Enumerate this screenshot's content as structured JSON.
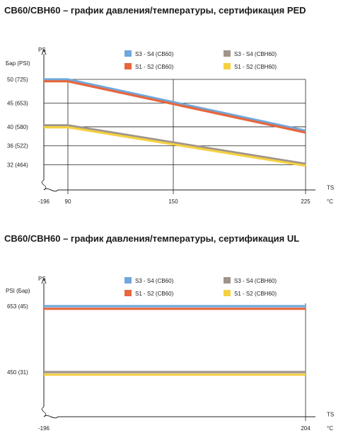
{
  "chart_data": [
    {
      "type": "line",
      "title": "CB60/CBH60 – график давления/температуры, сертификация PED",
      "ylabel": "PS",
      "yunit": "Бар (PSI)",
      "xlabel": "TS",
      "xunit": "°C",
      "yticks": [
        {
          "value": 50,
          "label": "50  (725)"
        },
        {
          "value": 45,
          "label": "45  (653)"
        },
        {
          "value": 40,
          "label": "40  (580)"
        },
        {
          "value": 36,
          "label": "36  (522)"
        },
        {
          "value": 32,
          "label": "32  (464)"
        }
      ],
      "xticks": [
        {
          "value": -196,
          "label": "-196"
        },
        {
          "value": 90,
          "label": "90"
        },
        {
          "value": 150,
          "label": "150"
        },
        {
          "value": 225,
          "label": "225"
        }
      ],
      "legend_placement": "top",
      "series": [
        {
          "name": "S3 - S4   (CB60)",
          "color": "#6fa8dc",
          "x": [
            -196,
            90,
            225
          ],
          "y": [
            50,
            50,
            39.2
          ]
        },
        {
          "name": "S1 - S2   (CB60)",
          "color": "#e8663d",
          "x": [
            -196,
            90,
            225
          ],
          "y": [
            49.6,
            49.6,
            38.8
          ]
        },
        {
          "name": "S3 - S4   (CBH60)",
          "color": "#9e948c",
          "x": [
            -196,
            90,
            225
          ],
          "y": [
            40.3,
            40.3,
            32.2
          ]
        },
        {
          "name": "S1 - S2   (CBH60)",
          "color": "#f5d142",
          "x": [
            -196,
            90,
            225
          ],
          "y": [
            39.9,
            39.9,
            31.8
          ]
        }
      ]
    },
    {
      "type": "line",
      "title": "CB60/CBH60 – график давления/температуры, сертификация UL",
      "ylabel": "PS",
      "yunit": "PSI (Бар)",
      "xlabel": "TS",
      "xunit": "°C",
      "yticks": [
        {
          "value": 653,
          "label": "653  (45)"
        },
        {
          "value": 450,
          "label": "450  (31)"
        }
      ],
      "xticks": [
        {
          "value": -196,
          "label": "-196"
        },
        {
          "value": 204,
          "label": "204"
        }
      ],
      "legend_placement": "top",
      "series": [
        {
          "name": "S3 - S4   (CB60)",
          "color": "#6fa8dc",
          "x": [
            -196,
            204
          ],
          "y": [
            653,
            653
          ]
        },
        {
          "name": "S1 - S2   (CB60)",
          "color": "#e8663d",
          "x": [
            -196,
            204
          ],
          "y": [
            645,
            645
          ]
        },
        {
          "name": "S3 - S4   (CBH60)",
          "color": "#9e948c",
          "x": [
            -196,
            204
          ],
          "y": [
            450,
            450
          ]
        },
        {
          "name": "S1 - S2   (CBH60)",
          "color": "#f5d142",
          "x": [
            -196,
            204
          ],
          "y": [
            442,
            442
          ]
        }
      ]
    }
  ]
}
